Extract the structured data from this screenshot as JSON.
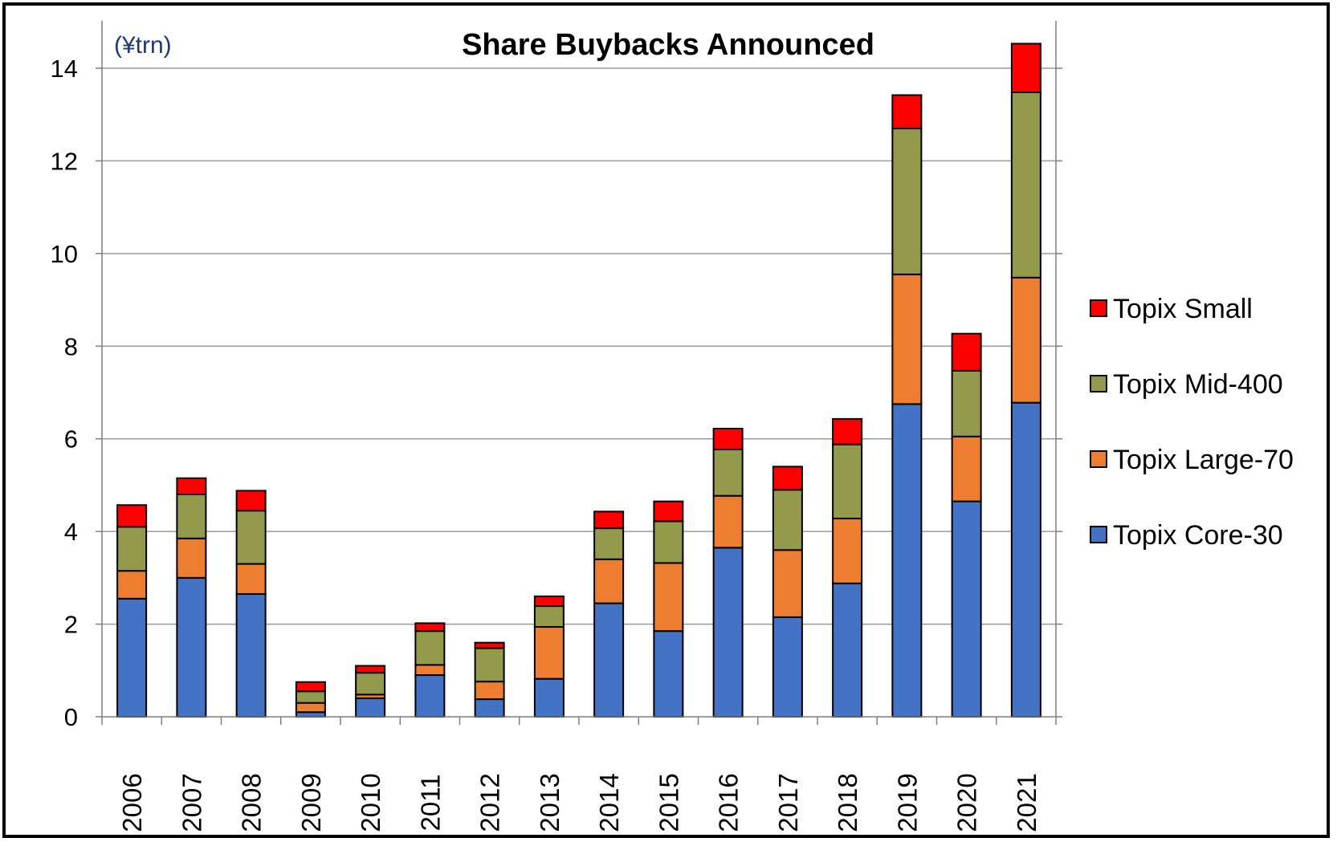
{
  "chart_data": {
    "type": "bar",
    "stacked": true,
    "title": "Share Buybacks Announced",
    "unit_label": "(¥trn)",
    "xlabel": "",
    "ylabel": "",
    "ylim": [
      0,
      14
    ],
    "yticks": [
      0,
      2,
      4,
      6,
      8,
      10,
      12,
      14
    ],
    "grid": true,
    "legend_position": "right",
    "categories": [
      "2006",
      "2007",
      "2008",
      "2009",
      "2010",
      "2011",
      "2012",
      "2013",
      "2014",
      "2015",
      "2016",
      "2017",
      "2018",
      "2019",
      "2020",
      "2021"
    ],
    "series": [
      {
        "name": "Topix Core-30",
        "color": "#4472c4",
        "values": [
          2.55,
          3.0,
          2.65,
          0.1,
          0.4,
          0.9,
          0.38,
          0.82,
          2.45,
          1.85,
          3.65,
          2.15,
          2.88,
          6.75,
          4.65,
          6.78
        ]
      },
      {
        "name": "Topix Large-70",
        "color": "#ed7d31",
        "values": [
          0.6,
          0.85,
          0.65,
          0.2,
          0.08,
          0.22,
          0.38,
          1.12,
          0.95,
          1.47,
          1.12,
          1.45,
          1.4,
          2.8,
          1.4,
          2.7
        ]
      },
      {
        "name": "Topix Mid-400",
        "color": "#939a4b",
        "values": [
          0.95,
          0.95,
          1.15,
          0.25,
          0.47,
          0.73,
          0.72,
          0.45,
          0.67,
          0.9,
          1.0,
          1.3,
          1.6,
          3.15,
          1.42,
          4.0
        ]
      },
      {
        "name": "Topix Small",
        "color": "#ff0000",
        "values": [
          0.47,
          0.35,
          0.43,
          0.2,
          0.15,
          0.17,
          0.12,
          0.21,
          0.36,
          0.43,
          0.45,
          0.5,
          0.55,
          0.72,
          0.8,
          1.05
        ]
      }
    ]
  }
}
